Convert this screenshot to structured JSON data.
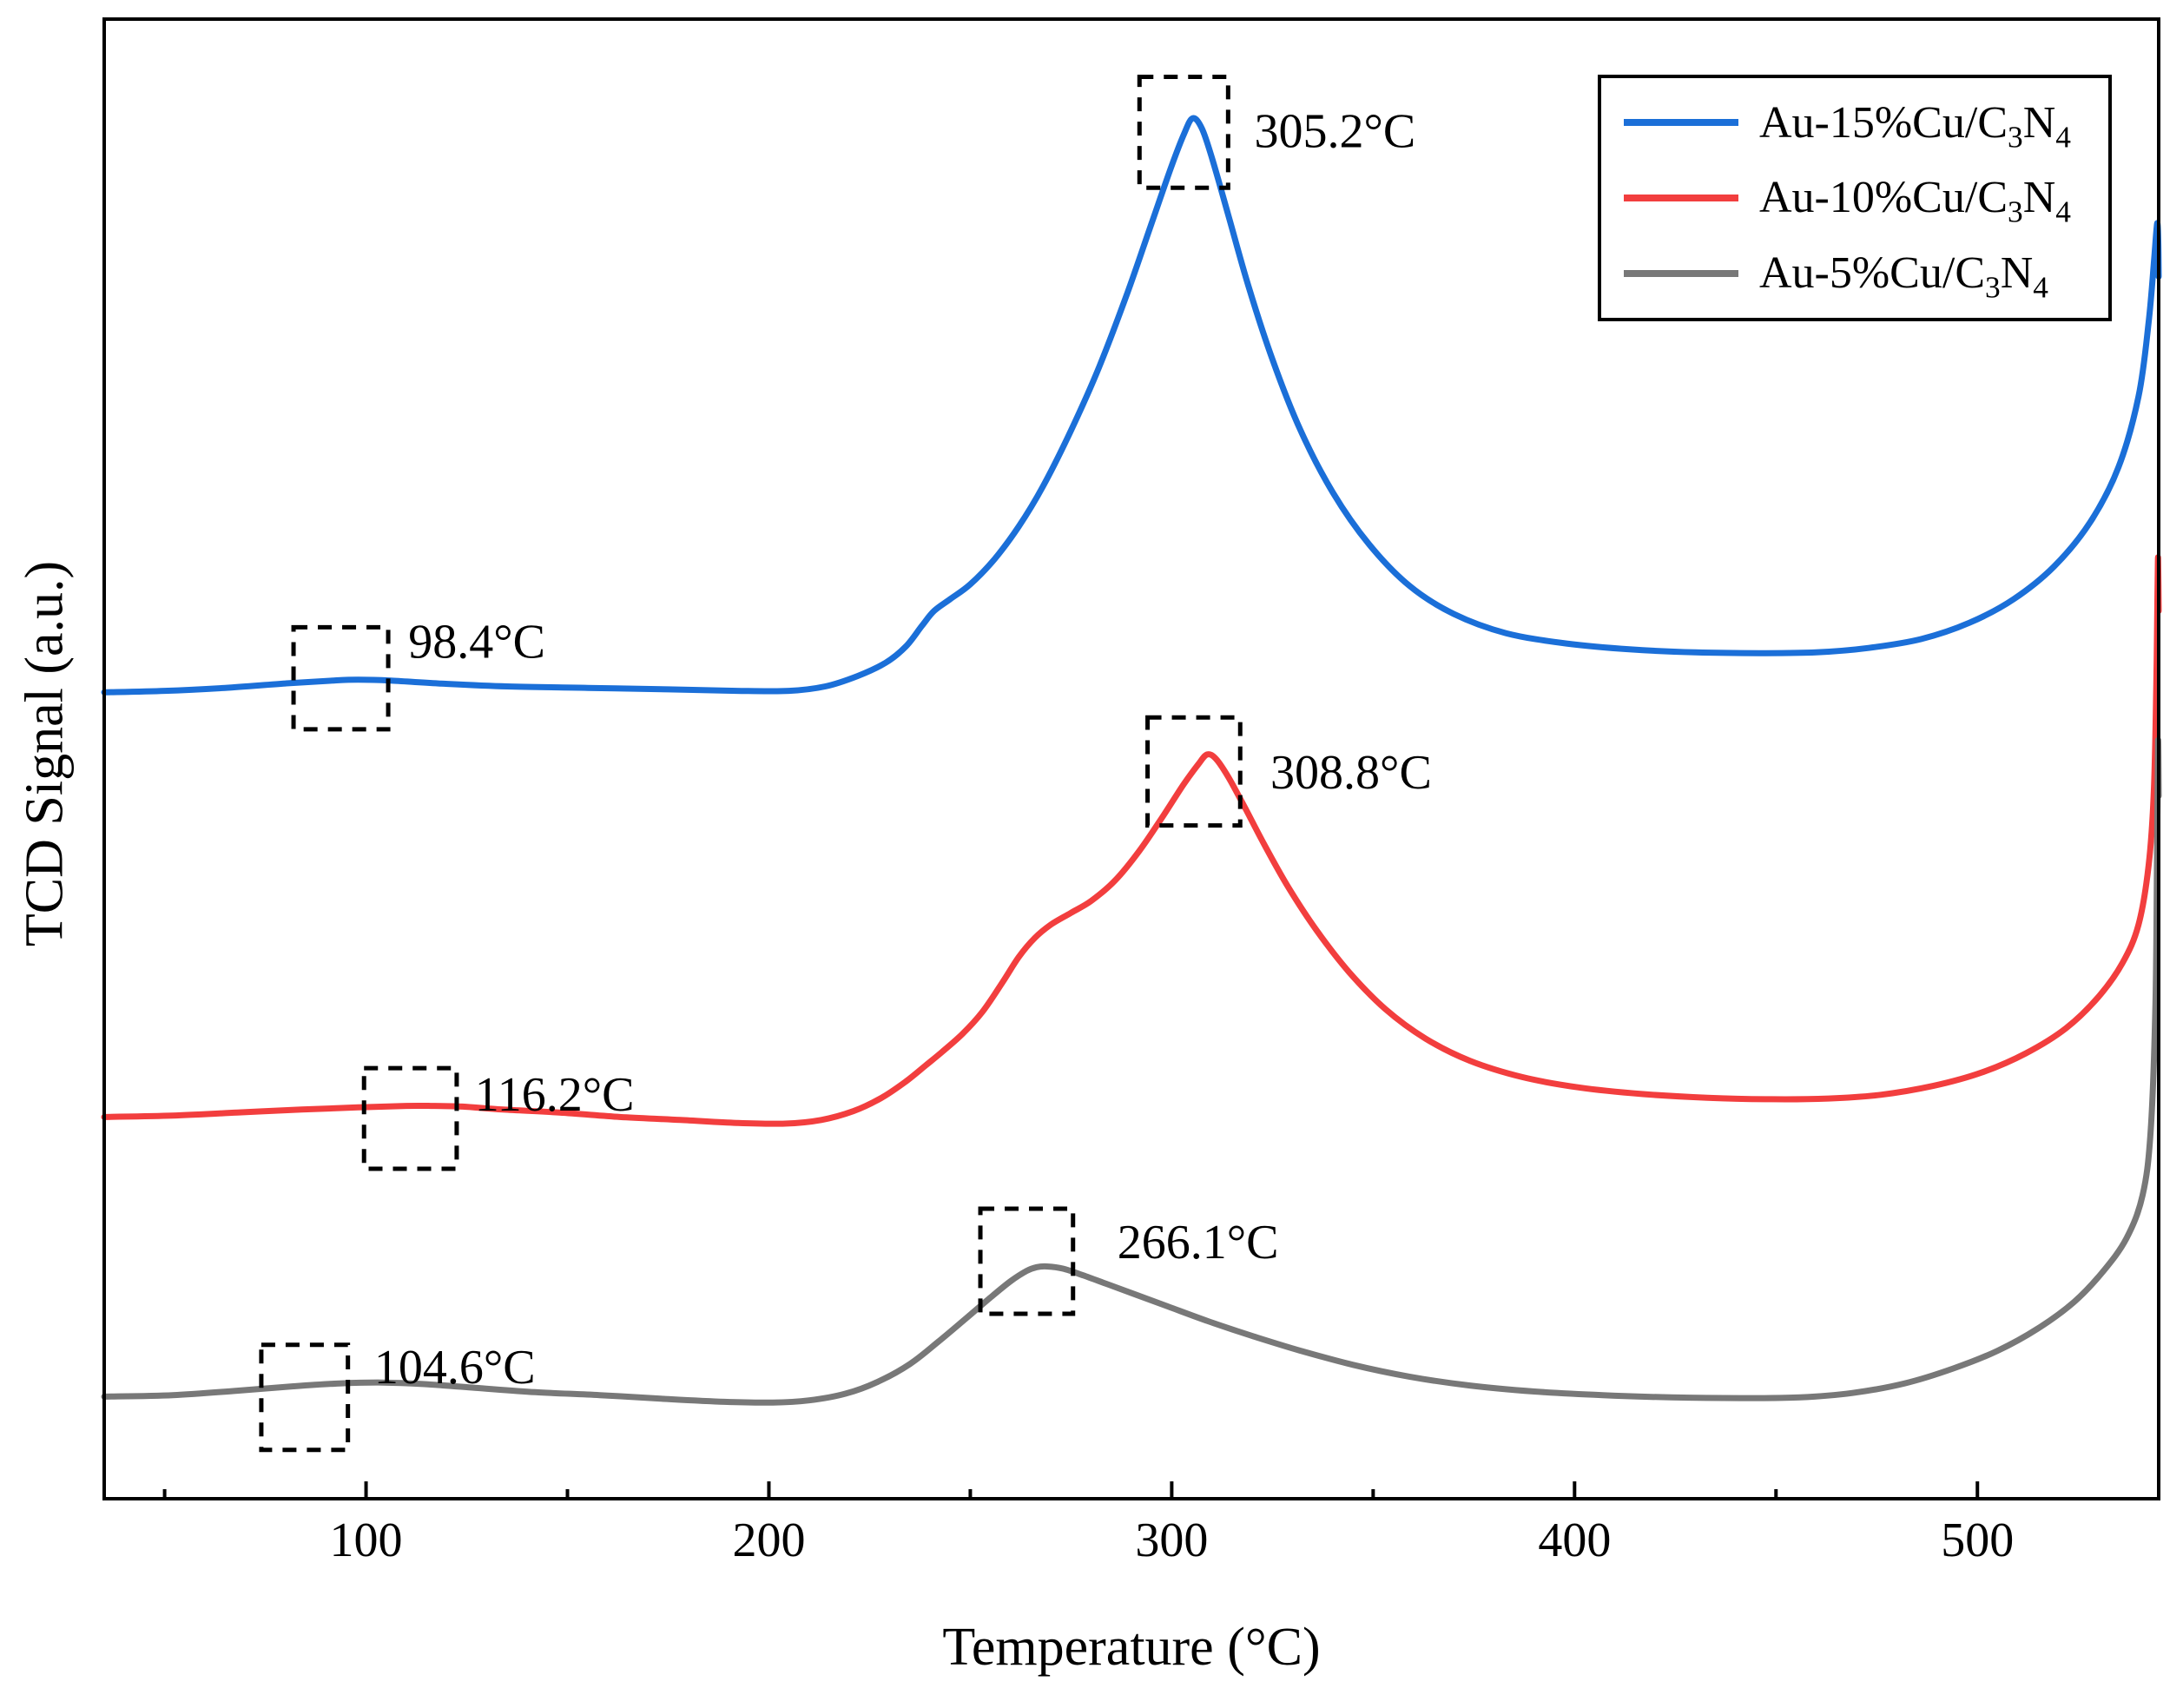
{
  "figure": {
    "xlabel": "Temperature (°C)",
    "ylabel": "TCD Signal (a.u.)",
    "background": "#ffffff",
    "border_color": "#000000"
  },
  "legend": {
    "position": "top-right",
    "items": [
      {
        "full_label": "Au-15%Cu/C3N4",
        "pre": "Au-15%Cu/C",
        "sub1": "3",
        "mid": "N",
        "sub2": "4",
        "color": "#1b6fd8"
      },
      {
        "full_label": "Au-10%Cu/C3N4",
        "pre": "Au-10%Cu/C",
        "sub1": "3",
        "mid": "N",
        "sub2": "4",
        "color": "#f23e3e"
      },
      {
        "full_label": "Au-5%Cu/C3N4",
        "pre": "Au-5%Cu/C",
        "sub1": "3",
        "mid": "N",
        "sub2": "4",
        "color": "#787878"
      }
    ]
  },
  "chart_data": {
    "type": "line",
    "title": "",
    "xlabel": "Temperature (°C)",
    "ylabel": "TCD Signal (a.u.)",
    "xlim": [
      35,
      545
    ],
    "ylim": [
      0,
      1
    ],
    "x_ticks": [
      100,
      200,
      300,
      400,
      500
    ],
    "x_minor_ticks": [
      50,
      150,
      250,
      350,
      450
    ],
    "grid": false,
    "y_units": "normalized arbitrary units (0 = bottom axis, 1 = top axis); TPR traces are vertically offset for clarity",
    "series": [
      {
        "id": "au15",
        "name": "Au-15%Cu/C3N4",
        "color": "#1b6fd8",
        "line_width": 7,
        "peak_temperature_c": 305.2,
        "low_temperature_feature_c": 98.4,
        "points": [
          [
            35,
            0.545
          ],
          [
            50,
            0.546
          ],
          [
            65,
            0.548
          ],
          [
            80,
            0.551
          ],
          [
            92,
            0.553
          ],
          [
            98,
            0.5535
          ],
          [
            106,
            0.553
          ],
          [
            118,
            0.551
          ],
          [
            135,
            0.549
          ],
          [
            155,
            0.548
          ],
          [
            175,
            0.547
          ],
          [
            192,
            0.546
          ],
          [
            205,
            0.546
          ],
          [
            214,
            0.549
          ],
          [
            222,
            0.556
          ],
          [
            229,
            0.565
          ],
          [
            234,
            0.576
          ],
          [
            238,
            0.59
          ],
          [
            241,
            0.6
          ],
          [
            245,
            0.608
          ],
          [
            250,
            0.618
          ],
          [
            256,
            0.635
          ],
          [
            262,
            0.657
          ],
          [
            268,
            0.684
          ],
          [
            275,
            0.722
          ],
          [
            282,
            0.765
          ],
          [
            289,
            0.815
          ],
          [
            295,
            0.862
          ],
          [
            300,
            0.901
          ],
          [
            303,
            0.922
          ],
          [
            305.2,
            0.933
          ],
          [
            307.5,
            0.926
          ],
          [
            310,
            0.906
          ],
          [
            314,
            0.868
          ],
          [
            319,
            0.82
          ],
          [
            325,
            0.77
          ],
          [
            332,
            0.722
          ],
          [
            340,
            0.68
          ],
          [
            349,
            0.645
          ],
          [
            359,
            0.617
          ],
          [
            370,
            0.598
          ],
          [
            383,
            0.585
          ],
          [
            398,
            0.578
          ],
          [
            414,
            0.574
          ],
          [
            430,
            0.572
          ],
          [
            446,
            0.5715
          ],
          [
            460,
            0.572
          ],
          [
            473,
            0.575
          ],
          [
            486,
            0.581
          ],
          [
            498,
            0.592
          ],
          [
            509,
            0.608
          ],
          [
            519,
            0.63
          ],
          [
            528,
            0.66
          ],
          [
            535,
            0.697
          ],
          [
            540,
            0.745
          ],
          [
            542.5,
            0.795
          ],
          [
            543.8,
            0.835
          ],
          [
            544.4,
            0.856
          ],
          [
            544.7,
            0.862
          ],
          [
            544.9,
            0.85
          ],
          [
            545,
            0.826
          ]
        ]
      },
      {
        "id": "au10",
        "name": "Au-10%Cu/C3N4",
        "color": "#f23e3e",
        "line_width": 7,
        "peak_temperature_c": 308.8,
        "low_temperature_feature_c": 116.2,
        "points": [
          [
            35,
            0.258
          ],
          [
            52,
            0.259
          ],
          [
            68,
            0.261
          ],
          [
            84,
            0.263
          ],
          [
            98,
            0.2645
          ],
          [
            110,
            0.2655
          ],
          [
            116,
            0.2655
          ],
          [
            124,
            0.265
          ],
          [
            134,
            0.263
          ],
          [
            148,
            0.261
          ],
          [
            163,
            0.258
          ],
          [
            178,
            0.256
          ],
          [
            192,
            0.254
          ],
          [
            204,
            0.2535
          ],
          [
            213,
            0.256
          ],
          [
            221,
            0.262
          ],
          [
            228,
            0.271
          ],
          [
            234,
            0.282
          ],
          [
            239,
            0.293
          ],
          [
            243,
            0.302
          ],
          [
            248,
            0.314
          ],
          [
            253,
            0.329
          ],
          [
            258,
            0.349
          ],
          [
            262,
            0.366
          ],
          [
            266,
            0.379
          ],
          [
            270,
            0.388
          ],
          [
            275,
            0.396
          ],
          [
            280,
            0.404
          ],
          [
            286,
            0.418
          ],
          [
            292,
            0.438
          ],
          [
            298,
            0.462
          ],
          [
            303,
            0.483
          ],
          [
            306.5,
            0.496
          ],
          [
            308.8,
            0.503
          ],
          [
            311,
            0.5
          ],
          [
            314,
            0.488
          ],
          [
            318,
            0.468
          ],
          [
            323,
            0.442
          ],
          [
            329,
            0.413
          ],
          [
            336,
            0.384
          ],
          [
            344,
            0.356
          ],
          [
            353,
            0.331
          ],
          [
            363,
            0.311
          ],
          [
            374,
            0.296
          ],
          [
            387,
            0.285
          ],
          [
            401,
            0.278
          ],
          [
            417,
            0.2735
          ],
          [
            433,
            0.271
          ],
          [
            449,
            0.27
          ],
          [
            463,
            0.2705
          ],
          [
            476,
            0.273
          ],
          [
            489,
            0.279
          ],
          [
            501,
            0.288
          ],
          [
            512,
            0.301
          ],
          [
            522,
            0.318
          ],
          [
            530,
            0.339
          ],
          [
            536,
            0.362
          ],
          [
            540,
            0.388
          ],
          [
            542.5,
            0.428
          ],
          [
            543.8,
            0.478
          ],
          [
            544.4,
            0.548
          ],
          [
            544.7,
            0.612
          ],
          [
            544.85,
            0.636
          ],
          [
            545,
            0.6
          ]
        ]
      },
      {
        "id": "au5",
        "name": "Au-5%Cu/C3N4",
        "color": "#787878",
        "line_width": 7,
        "peak_temperature_c": 266.1,
        "low_temperature_feature_c": 104.6,
        "points": [
          [
            35,
            0.069
          ],
          [
            52,
            0.07
          ],
          [
            68,
            0.073
          ],
          [
            82,
            0.076
          ],
          [
            94,
            0.078
          ],
          [
            104,
            0.0785
          ],
          [
            114,
            0.0775
          ],
          [
            127,
            0.075
          ],
          [
            142,
            0.072
          ],
          [
            158,
            0.07
          ],
          [
            174,
            0.0675
          ],
          [
            189,
            0.0655
          ],
          [
            201,
            0.065
          ],
          [
            210,
            0.0665
          ],
          [
            219,
            0.071
          ],
          [
            227,
            0.079
          ],
          [
            235,
            0.091
          ],
          [
            242,
            0.106
          ],
          [
            249,
            0.122
          ],
          [
            255,
            0.136
          ],
          [
            260,
            0.147
          ],
          [
            264,
            0.154
          ],
          [
            266.5,
            0.1565
          ],
          [
            269,
            0.157
          ],
          [
            273,
            0.1555
          ],
          [
            278,
            0.151
          ],
          [
            284,
            0.145
          ],
          [
            291,
            0.138
          ],
          [
            299,
            0.13
          ],
          [
            309,
            0.12
          ],
          [
            320,
            0.11
          ],
          [
            332,
            0.1
          ],
          [
            345,
            0.0905
          ],
          [
            359,
            0.0825
          ],
          [
            374,
            0.0765
          ],
          [
            390,
            0.0725
          ],
          [
            407,
            0.07
          ],
          [
            424,
            0.0685
          ],
          [
            441,
            0.068
          ],
          [
            456,
            0.0685
          ],
          [
            469,
            0.0715
          ],
          [
            482,
            0.078
          ],
          [
            494,
            0.088
          ],
          [
            505,
            0.1
          ],
          [
            515,
            0.115
          ],
          [
            524,
            0.133
          ],
          [
            531,
            0.153
          ],
          [
            537,
            0.176
          ],
          [
            541,
            0.205
          ],
          [
            543,
            0.248
          ],
          [
            544.2,
            0.335
          ],
          [
            544.6,
            0.435
          ],
          [
            544.85,
            0.512
          ],
          [
            545,
            0.475
          ]
        ]
      }
    ],
    "annotations": [
      {
        "id": "au15-peak",
        "series": "Au-15%Cu/C3N4",
        "text": "305.2°C",
        "box": {
          "x1": 292,
          "x2": 314,
          "y1": 0.886,
          "y2": 0.961
        },
        "label_at": {
          "x": 320.5,
          "y": 0.921
        }
      },
      {
        "id": "au15-low",
        "series": "Au-15%Cu/C3N4",
        "text": "98.4°C",
        "box": {
          "x1": 82,
          "x2": 105.5,
          "y1": 0.52,
          "y2": 0.589
        },
        "label_at": {
          "x": 110.5,
          "y": 0.576
        }
      },
      {
        "id": "au10-peak",
        "series": "Au-10%Cu/C3N4",
        "text": "308.8°C",
        "box": {
          "x1": 294,
          "x2": 317,
          "y1": 0.455,
          "y2": 0.528
        },
        "label_at": {
          "x": 324.5,
          "y": 0.4875
        }
      },
      {
        "id": "au10-low",
        "series": "Au-10%Cu/C3N4",
        "text": "116.2°C",
        "box": {
          "x1": 99.5,
          "x2": 122.5,
          "y1": 0.223,
          "y2": 0.291
        },
        "label_at": {
          "x": 127,
          "y": 0.27
        }
      },
      {
        "id": "au5-peak",
        "series": "Au-5%Cu/C3N4",
        "text": "266.1°C",
        "box": {
          "x1": 252.5,
          "x2": 275.5,
          "y1": 0.125,
          "y2": 0.196
        },
        "label_at": {
          "x": 286.5,
          "y": 0.17
        }
      },
      {
        "id": "au5-low",
        "series": "Au-5%Cu/C3N4",
        "text": "104.6°C",
        "box": {
          "x1": 74,
          "x2": 95.5,
          "y1": 0.033,
          "y2": 0.104
        },
        "label_at": {
          "x": 102,
          "y": 0.0855
        }
      }
    ],
    "style": {
      "axis_color": "#000000",
      "axis_width": 4,
      "tick_major_len": 20,
      "tick_minor_len": 11,
      "tick_label_size": 56,
      "annotation_font_size": 56,
      "annotation_box_stroke": 5,
      "annotation_dash": "16 12"
    }
  }
}
